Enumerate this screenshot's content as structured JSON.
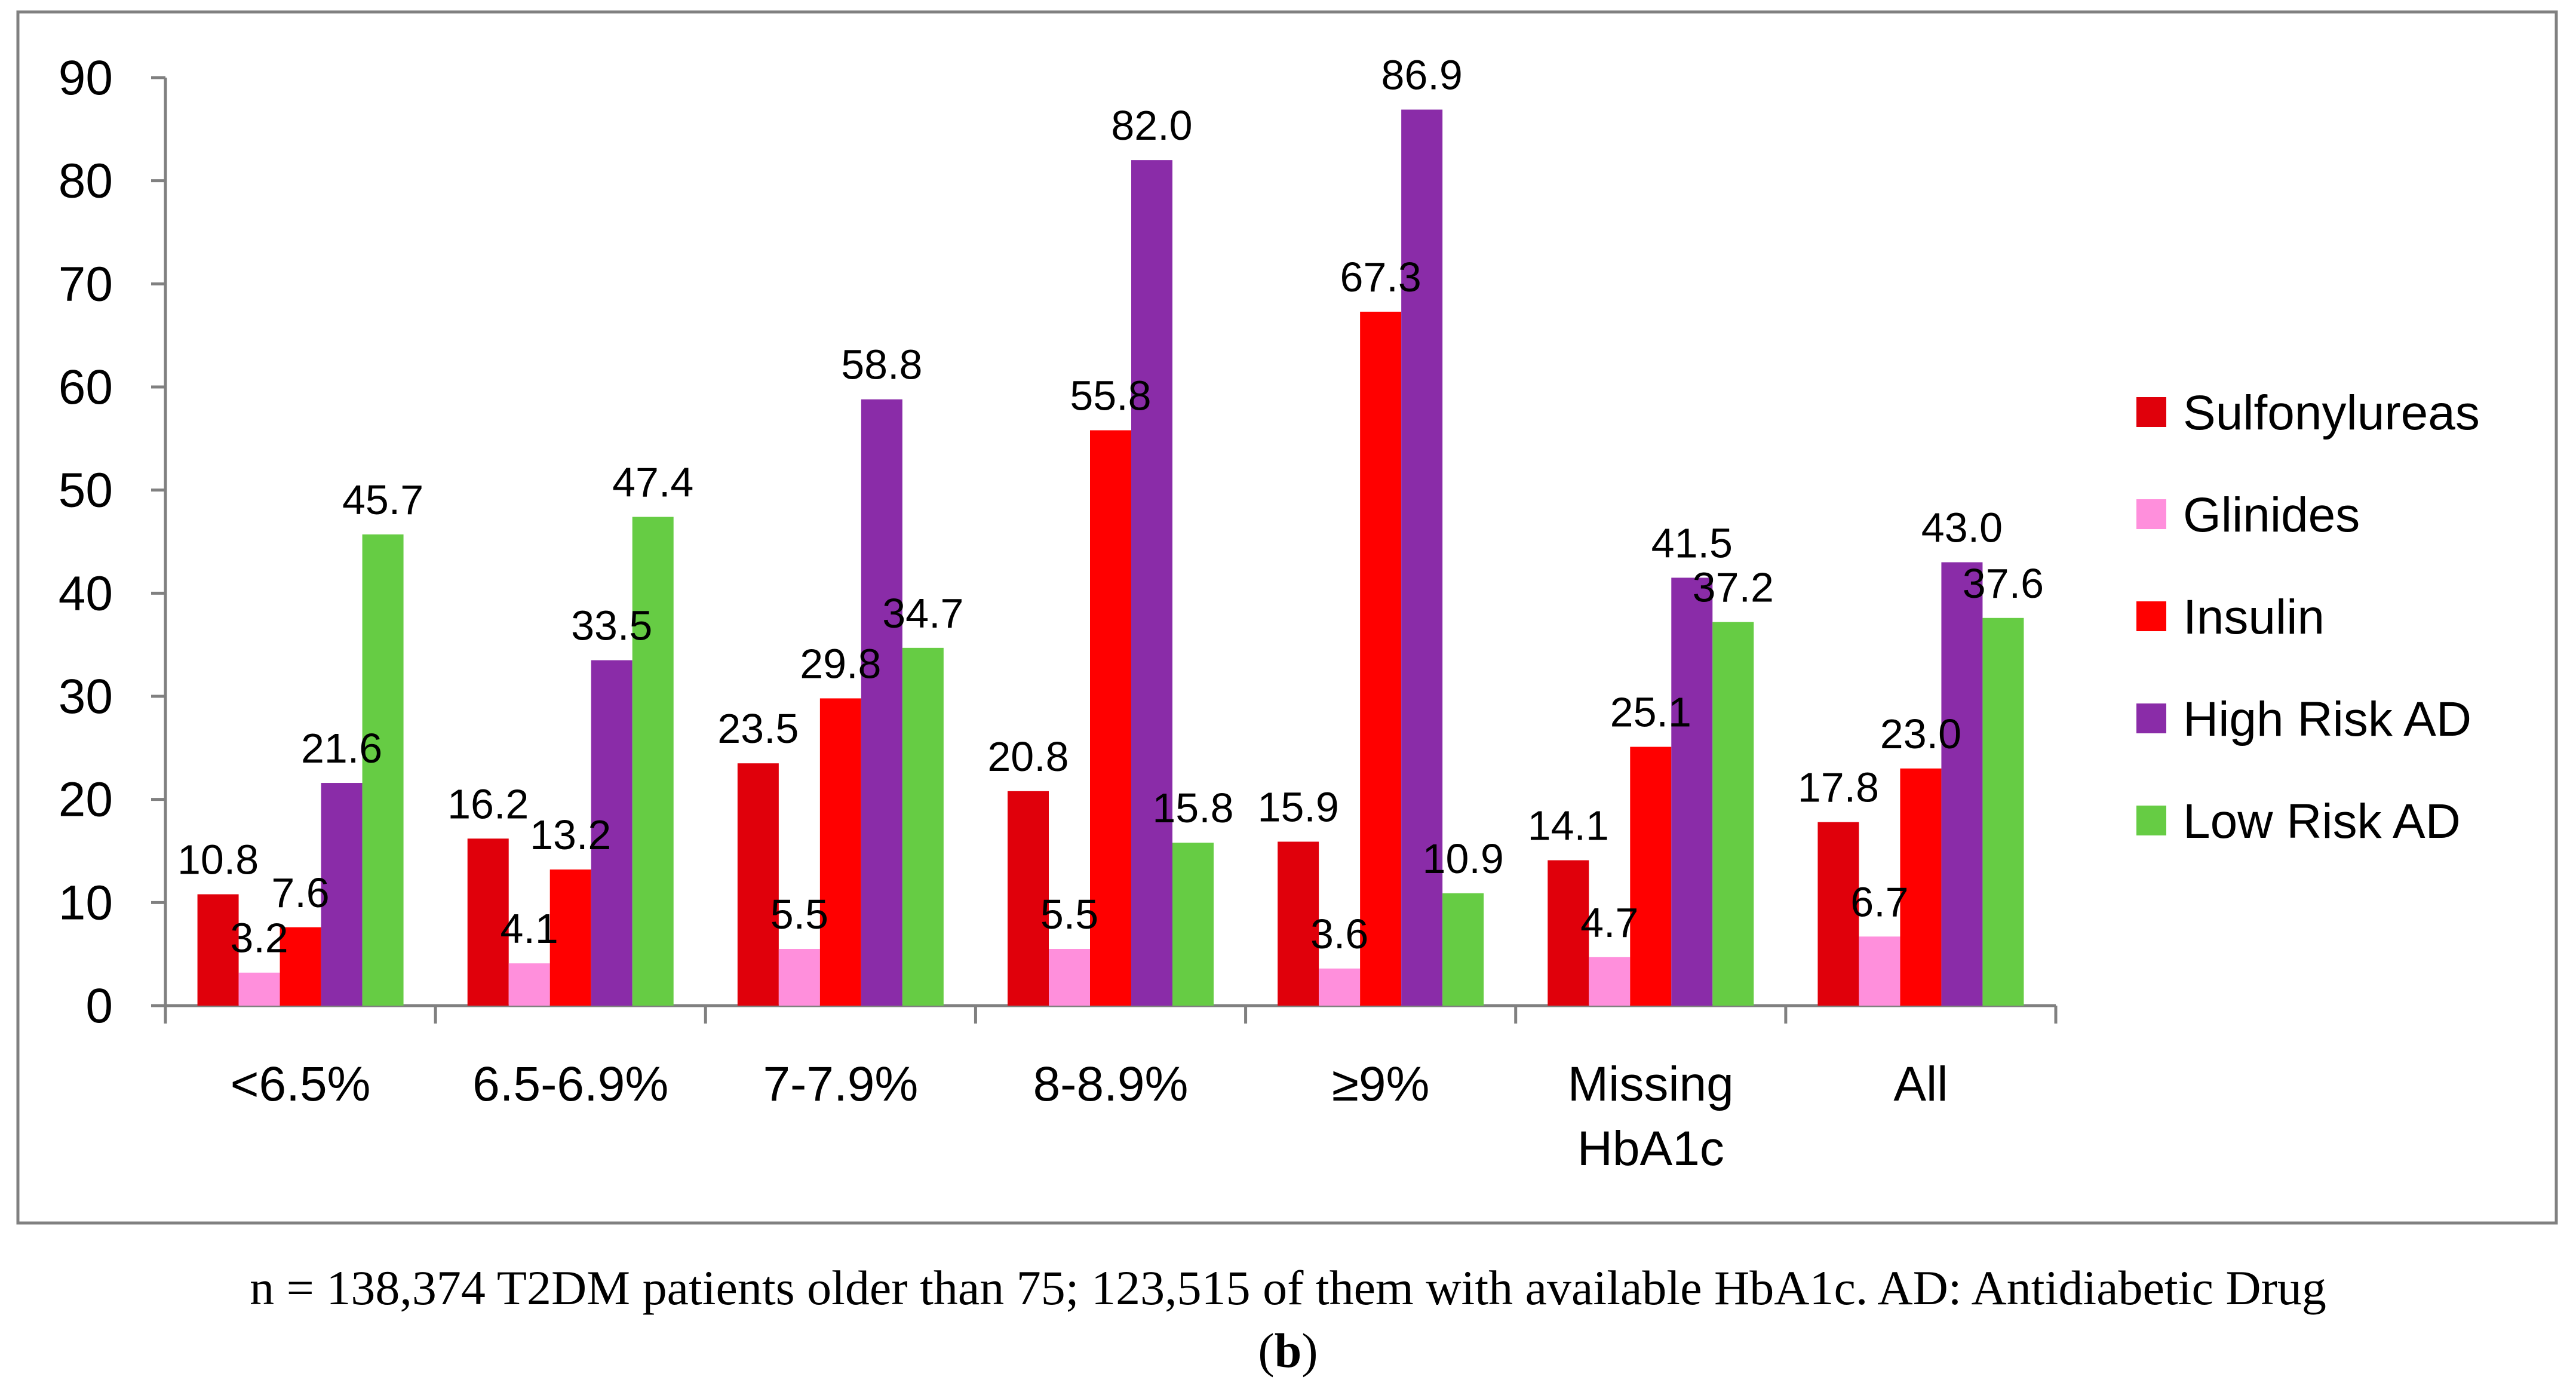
{
  "chart_data": {
    "type": "bar",
    "categories": [
      [
        "<6.5%"
      ],
      [
        "6.5-6.9%"
      ],
      [
        "7-7.9%"
      ],
      [
        "8-8.9%"
      ],
      [
        "≥9%"
      ],
      [
        "Missing",
        "HbA1c"
      ],
      [
        "All"
      ]
    ],
    "series": [
      {
        "name": "Sulfonylureas",
        "color": "#e0000b",
        "values": [
          10.8,
          16.2,
          23.5,
          20.8,
          15.9,
          14.1,
          17.8
        ]
      },
      {
        "name": "Glinides",
        "color": "#ff8fdc",
        "values": [
          3.2,
          4.1,
          5.5,
          5.5,
          3.6,
          4.7,
          6.7
        ]
      },
      {
        "name": "Insulin",
        "color": "#ff0000",
        "values": [
          7.6,
          13.2,
          29.8,
          55.8,
          67.3,
          25.1,
          23.0
        ]
      },
      {
        "name": "High Risk AD",
        "color": "#8a2ca8",
        "values": [
          21.6,
          33.5,
          58.8,
          82.0,
          86.9,
          41.5,
          43.0
        ]
      },
      {
        "name": "Low Risk AD",
        "color": "#66cc44",
        "values": [
          45.7,
          47.4,
          34.7,
          15.8,
          10.9,
          37.2,
          37.6
        ]
      }
    ],
    "ylim": [
      0,
      90
    ],
    "yticks": [
      0,
      10,
      20,
      30,
      40,
      50,
      60,
      70,
      80,
      90
    ],
    "title": "",
    "xlabel": "",
    "ylabel": "",
    "legend_position": "right",
    "grid": false
  },
  "caption": {
    "line": "n = 138,374 T2DM patients older than 75; 123,515 of them with available HbA1c.    AD: Antidiabetic Drug",
    "panel_open": "(",
    "panel_letter": "b",
    "panel_close": ")"
  }
}
